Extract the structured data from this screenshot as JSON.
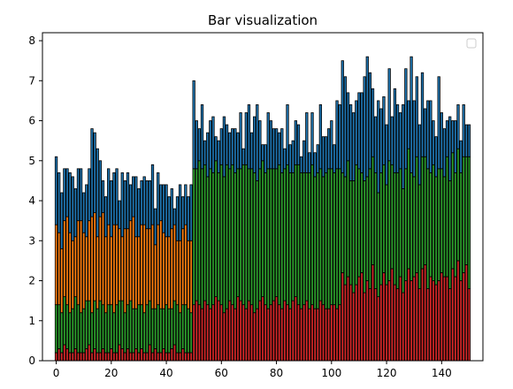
{
  "chart_data": {
    "type": "bar",
    "stacked": true,
    "title": "Bar visualization",
    "xlabel": "",
    "ylabel": "",
    "xlim": [
      -5,
      155
    ],
    "ylim": [
      0,
      8.2
    ],
    "x_ticks": [
      0,
      20,
      40,
      60,
      80,
      100,
      120,
      140
    ],
    "y_ticks": [
      0,
      1,
      2,
      3,
      4,
      5,
      6,
      7,
      8
    ],
    "grid": false,
    "legend": {
      "position": "top-right",
      "entries": []
    },
    "colors": {
      "red": "#d62728",
      "green": "#2ca02c",
      "orange": "#ff7f0e",
      "blue": "#1f77b4",
      "edge": "#000000"
    },
    "x": [
      0,
      1,
      2,
      3,
      4,
      5,
      6,
      7,
      8,
      9,
      10,
      11,
      12,
      13,
      14,
      15,
      16,
      17,
      18,
      19,
      20,
      21,
      22,
      23,
      24,
      25,
      26,
      27,
      28,
      29,
      30,
      31,
      32,
      33,
      34,
      35,
      36,
      37,
      38,
      39,
      40,
      41,
      42,
      43,
      44,
      45,
      46,
      47,
      48,
      49,
      50,
      51,
      52,
      53,
      54,
      55,
      56,
      57,
      58,
      59,
      60,
      61,
      62,
      63,
      64,
      65,
      66,
      67,
      68,
      69,
      70,
      71,
      72,
      73,
      74,
      75,
      76,
      77,
      78,
      79,
      80,
      81,
      82,
      83,
      84,
      85,
      86,
      87,
      88,
      89,
      90,
      91,
      92,
      93,
      94,
      95,
      96,
      97,
      98,
      99,
      100,
      101,
      102,
      103,
      104,
      105,
      106,
      107,
      108,
      109,
      110,
      111,
      112,
      113,
      114,
      115,
      116,
      117,
      118,
      119,
      120,
      121,
      122,
      123,
      124,
      125,
      126,
      127,
      128,
      129,
      130,
      131,
      132,
      133,
      134,
      135,
      136,
      137,
      138,
      139,
      140,
      141,
      142,
      143,
      144,
      145,
      146,
      147,
      148,
      149,
      150
    ],
    "series": [
      {
        "color": "red",
        "values": [
          0.2,
          0.3,
          0.2,
          0.4,
          0.3,
          0.2,
          0.2,
          0.3,
          0.2,
          0.2,
          0.2,
          0.3,
          0.4,
          0.2,
          0.3,
          0.2,
          0.2,
          0.3,
          0.2,
          0.2,
          0.3,
          0.2,
          0.2,
          0.4,
          0.3,
          0.2,
          0.3,
          0.2,
          0.2,
          0.3,
          0.2,
          0.3,
          0.2,
          0.2,
          0.4,
          0.2,
          0.3,
          0.2,
          0.2,
          0.3,
          0.2,
          0.2,
          0.3,
          0.4,
          0.2,
          0.2,
          0.3,
          0.2,
          0.2,
          0.2,
          1.4,
          1.5,
          1.4,
          1.3,
          1.5,
          1.4,
          1.3,
          1.4,
          1.6,
          1.5,
          1.4,
          1.2,
          1.3,
          1.5,
          1.4,
          1.3,
          1.6,
          1.5,
          1.4,
          1.3,
          1.5,
          1.4,
          1.2,
          1.3,
          1.5,
          1.6,
          1.4,
          1.3,
          1.4,
          1.5,
          1.6,
          1.4,
          1.3,
          1.5,
          1.4,
          1.3,
          1.5,
          1.6,
          1.4,
          1.3,
          1.4,
          1.5,
          1.3,
          1.4,
          1.3,
          1.3,
          1.5,
          1.4,
          1.3,
          1.3,
          1.4,
          1.4,
          1.3,
          1.4,
          2.2,
          1.9,
          2.1,
          1.9,
          1.7,
          1.9,
          2.1,
          2.2,
          1.7,
          2.0,
          1.8,
          2.4,
          1.8,
          1.6,
          1.9,
          2.2,
          1.9,
          2.0,
          2.3,
          1.9,
          1.8,
          2.1,
          1.7,
          2.0,
          2.3,
          2.0,
          2.1,
          2.2,
          1.8,
          2.3,
          2.4,
          1.8,
          2.1,
          2.0,
          1.9,
          2.0,
          2.2,
          2.1,
          2.1,
          1.8,
          2.3,
          2.1,
          2.5,
          2.0,
          2.2,
          2.4,
          1.8
        ]
      },
      {
        "color": "green",
        "values": [
          1.2,
          1.1,
          1.0,
          1.2,
          1.1,
          1.0,
          1.1,
          1.3,
          1.2,
          1.0,
          1.1,
          1.2,
          1.1,
          1.0,
          1.2,
          1.1,
          1.3,
          1.1,
          1.0,
          1.2,
          1.1,
          1.0,
          1.2,
          1.1,
          1.2,
          1.0,
          1.1,
          1.3,
          1.1,
          1.0,
          1.2,
          1.1,
          1.0,
          1.2,
          1.1,
          1.1,
          1.0,
          1.2,
          1.1,
          1.0,
          1.2,
          1.1,
          1.0,
          1.1,
          1.2,
          1.0,
          1.1,
          1.2,
          1.1,
          1.0,
          3.4,
          3.3,
          3.6,
          3.5,
          3.4,
          3.2,
          3.5,
          3.3,
          3.4,
          3.2,
          3.5,
          3.4,
          3.6,
          3.3,
          3.5,
          3.4,
          3.2,
          3.3,
          3.5,
          3.6,
          3.3,
          3.4,
          3.5,
          3.2,
          3.3,
          3.4,
          3.3,
          3.5,
          3.4,
          3.3,
          3.2,
          3.5,
          3.4,
          3.3,
          3.5,
          3.4,
          3.2,
          3.3,
          3.5,
          3.4,
          3.3,
          3.2,
          3.4,
          3.5,
          3.3,
          3.4,
          3.3,
          3.2,
          3.4,
          3.5,
          3.4,
          3.3,
          3.5,
          3.4,
          2.5,
          2.7,
          2.9,
          2.6,
          2.8,
          3.0,
          2.7,
          2.5,
          2.8,
          2.6,
          3.0,
          2.7,
          2.9,
          2.6,
          2.8,
          2.7,
          2.5,
          3.0,
          2.6,
          2.8,
          2.9,
          2.7,
          2.6,
          2.8,
          3.0,
          2.7,
          2.5,
          2.9,
          2.6,
          2.8,
          2.7,
          3.0,
          2.6,
          2.9,
          2.7,
          2.8,
          2.6,
          2.5,
          3.0,
          2.7,
          2.9,
          2.6,
          2.8,
          2.7,
          2.9,
          2.7,
          3.3
        ]
      },
      {
        "color": "orange",
        "values": [
          2.0,
          1.8,
          1.6,
          1.9,
          2.2,
          2.0,
          1.7,
          1.5,
          2.1,
          2.3,
          1.9,
          1.6,
          2.0,
          2.4,
          2.2,
          1.8,
          2.1,
          2.3,
          1.9,
          2.0,
          1.7,
          2.2,
          2.0,
          1.8,
          1.6,
          2.1,
          1.9,
          2.0,
          2.3,
          1.8,
          1.7,
          2.0,
          2.2,
          1.9,
          1.8,
          2.1,
          1.6,
          2.0,
          2.2,
          1.9,
          1.7,
          1.8,
          2.0,
          1.9,
          1.6,
          1.8,
          1.9,
          2.0,
          1.7,
          1.8,
          0,
          0,
          0,
          0,
          0,
          0,
          0,
          0,
          0,
          0,
          0,
          0,
          0,
          0,
          0,
          0,
          0,
          0,
          0,
          0,
          0,
          0,
          0,
          0,
          0,
          0,
          0,
          0,
          0,
          0,
          0,
          0,
          0,
          0,
          0,
          0,
          0,
          0,
          0,
          0,
          0,
          0,
          0,
          0,
          0,
          0,
          0,
          0,
          0,
          0,
          0,
          0,
          0,
          0,
          0,
          0,
          0,
          0,
          0,
          0,
          0,
          0,
          0,
          0,
          0,
          0,
          0,
          0,
          0,
          0,
          0,
          0,
          0,
          0,
          0,
          0,
          0,
          0,
          0,
          0,
          0,
          0,
          0,
          0,
          0,
          0,
          0,
          0,
          0,
          0,
          0,
          0,
          0,
          0,
          0,
          0,
          0,
          0,
          0,
          0,
          0
        ]
      },
      {
        "color": "blue",
        "values": [
          1.7,
          1.5,
          1.4,
          1.3,
          1.2,
          1.5,
          1.6,
          1.2,
          1.3,
          1.3,
          1.0,
          1.3,
          1.3,
          2.2,
          2.0,
          2.2,
          1.4,
          0.8,
          1.0,
          1.4,
          1.4,
          1.3,
          1.4,
          0.7,
          1.6,
          1.2,
          1.4,
          0.9,
          1.0,
          1.5,
          1.2,
          1.1,
          1.2,
          1.2,
          1.2,
          1.5,
          0.9,
          1.3,
          0.9,
          1.2,
          1.3,
          1.0,
          1.0,
          0.4,
          1.1,
          1.4,
          0.8,
          1.0,
          1.1,
          1.4,
          2.2,
          1.2,
          0.8,
          1.6,
          0.6,
          1.1,
          1.2,
          1.4,
          0.6,
          0.8,
          0.9,
          1.5,
          1.0,
          0.9,
          0.9,
          1.1,
          0.9,
          1.4,
          0.4,
          1.3,
          1.6,
          0.9,
          1.4,
          1.9,
          1.2,
          0.4,
          0.7,
          1.4,
          1.2,
          1.0,
          1.0,
          0.8,
          1.1,
          0.5,
          1.5,
          0.7,
          0.8,
          1.1,
          1.0,
          0.4,
          0.8,
          1.5,
          0.5,
          1.3,
          0.6,
          0.7,
          1.6,
          1.0,
          0.9,
          1.0,
          1.2,
          0.7,
          1.7,
          1.6,
          2.8,
          2.5,
          1.7,
          1.9,
          1.7,
          1.6,
          1.9,
          2.0,
          2.6,
          3.0,
          2.4,
          1.7,
          1.4,
          2.3,
          1.6,
          1.7,
          1.5,
          2.3,
          1.2,
          2.1,
          1.7,
          1.4,
          2.1,
          2.5,
          1.2,
          2.9,
          1.9,
          2.0,
          1.5,
          2.1,
          1.2,
          1.7,
          1.8,
          1.1,
          1.0,
          2.3,
          1.4,
          1.2,
          0.9,
          1.6,
          0.8,
          1.3,
          1.1,
          0.8,
          1.3,
          0.8,
          0.8
        ]
      }
    ]
  }
}
